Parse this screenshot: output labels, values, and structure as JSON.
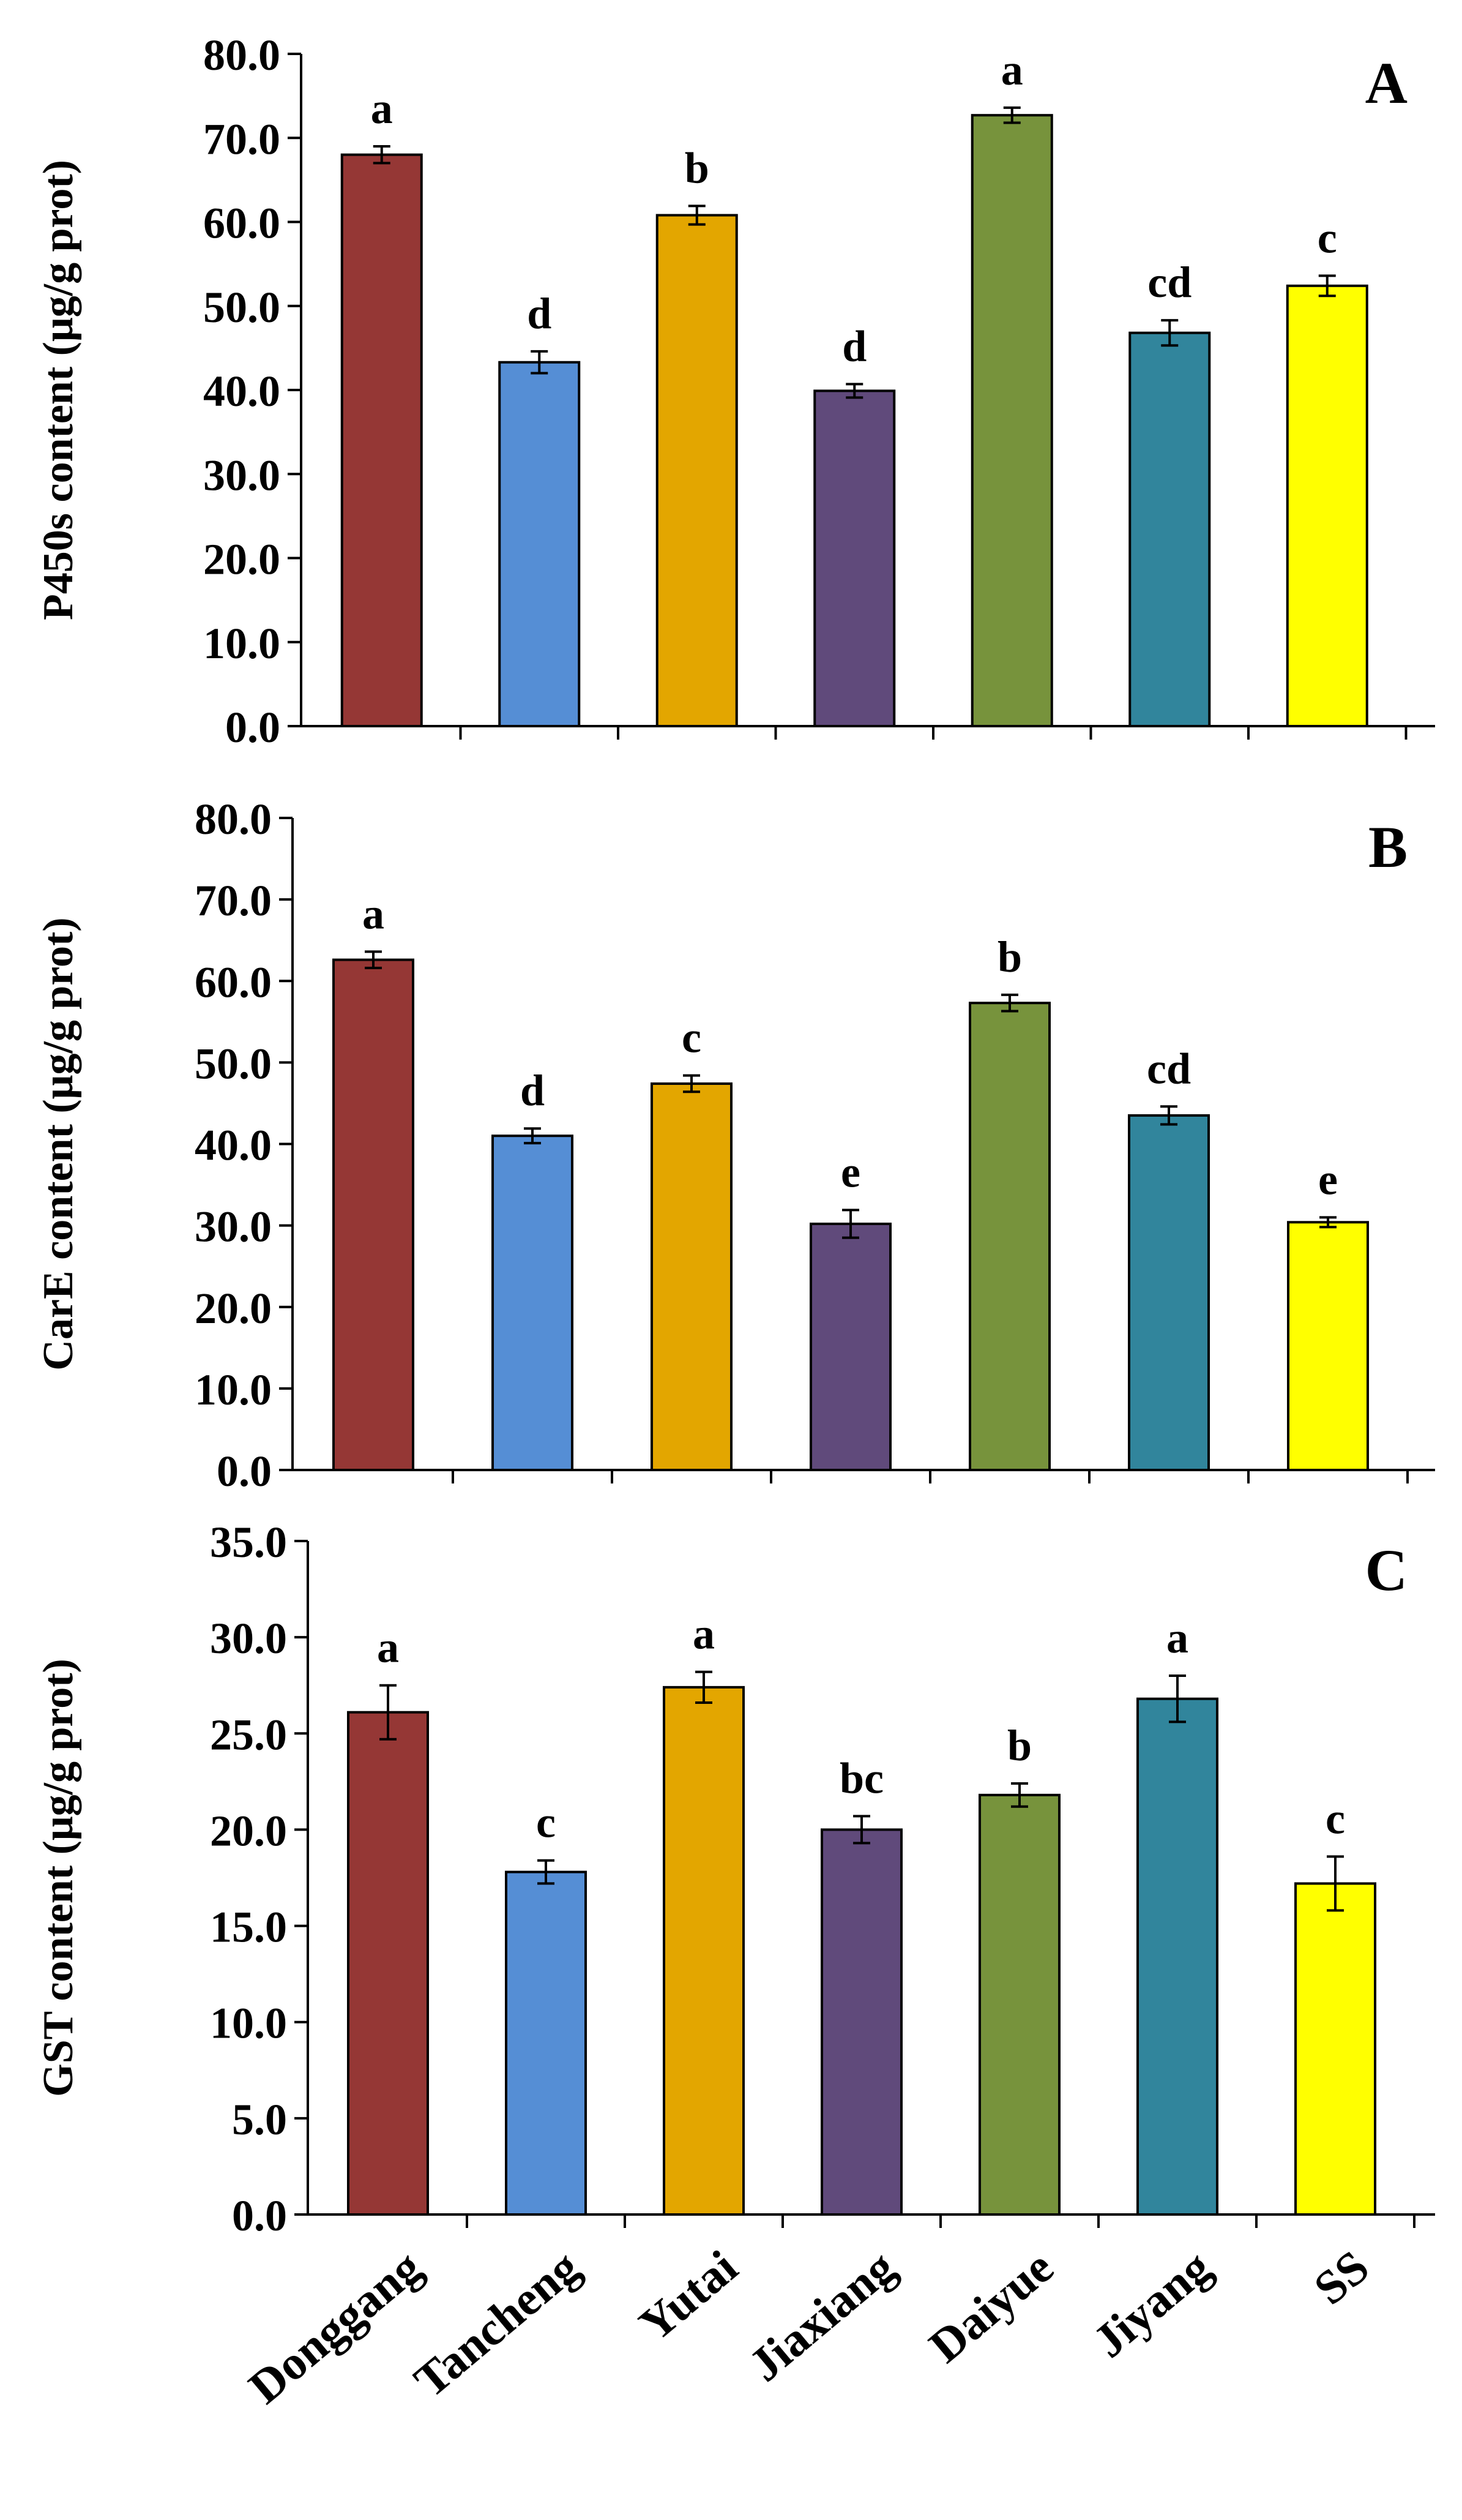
{
  "categories": [
    "Donggang",
    "Tancheng",
    "Yutai",
    "Jiaxiang",
    "Daiyue",
    "Jiyang",
    "SS"
  ],
  "colors": [
    "#953735",
    "#558ED5",
    "#E3A600",
    "#604A7B",
    "#77933C",
    "#31859C",
    "#FFFF00"
  ],
  "chart_data": [
    {
      "type": "bar",
      "panel": "A",
      "ylabel": "P450s content (μg/g prot)",
      "ylim": [
        0,
        80
      ],
      "ytick_step": 10,
      "ytick_labels": [
        "0.0",
        "10.0",
        "20.0",
        "30.0",
        "40.0",
        "50.0",
        "60.0",
        "70.0",
        "80.0"
      ],
      "categories": [
        "Donggang",
        "Tancheng",
        "Yutai",
        "Jiaxiang",
        "Daiyue",
        "Jiyang",
        "SS"
      ],
      "values": [
        68.0,
        43.3,
        60.8,
        39.9,
        72.7,
        46.8,
        52.4
      ],
      "errors": [
        1.0,
        1.3,
        1.1,
        0.8,
        0.9,
        1.5,
        1.2
      ],
      "significance": [
        "a",
        "d",
        "b",
        "d",
        "a",
        "cd",
        "c"
      ]
    },
    {
      "type": "bar",
      "panel": "B",
      "ylabel": "CarE content (μg/g prot)",
      "ylim": [
        0,
        80
      ],
      "ytick_step": 10,
      "ytick_labels": [
        "0.0",
        "10.0",
        "20.0",
        "30.0",
        "40.0",
        "50.0",
        "60.0",
        "70.0",
        "80.0"
      ],
      "categories": [
        "Donggang",
        "Tancheng",
        "Yutai",
        "Jiaxiang",
        "Daiyue",
        "Jiyang",
        "SS"
      ],
      "values": [
        62.6,
        41.0,
        47.4,
        30.2,
        57.3,
        43.5,
        30.4
      ],
      "errors": [
        1.0,
        0.9,
        1.0,
        1.7,
        1.0,
        1.1,
        0.6
      ],
      "significance": [
        "a",
        "d",
        "c",
        "e",
        "b",
        "cd",
        "e"
      ]
    },
    {
      "type": "bar",
      "panel": "C",
      "ylabel": "GST content (μg/g prot)",
      "ylim": [
        0,
        35
      ],
      "ytick_step": 5,
      "ytick_labels": [
        "0.0",
        "5.0",
        "10.0",
        "15.0",
        "20.0",
        "25.0",
        "30.0",
        "35.0"
      ],
      "categories": [
        "Donggang",
        "Tancheng",
        "Yutai",
        "Jiaxiang",
        "Daiyue",
        "Jiyang",
        "SS"
      ],
      "values": [
        26.1,
        17.8,
        27.4,
        20.0,
        21.8,
        26.8,
        17.2
      ],
      "errors": [
        1.4,
        0.6,
        0.8,
        0.7,
        0.6,
        1.2,
        1.4
      ],
      "significance": [
        "a",
        "c",
        "a",
        "bc",
        "b",
        "a",
        "c"
      ]
    }
  ]
}
